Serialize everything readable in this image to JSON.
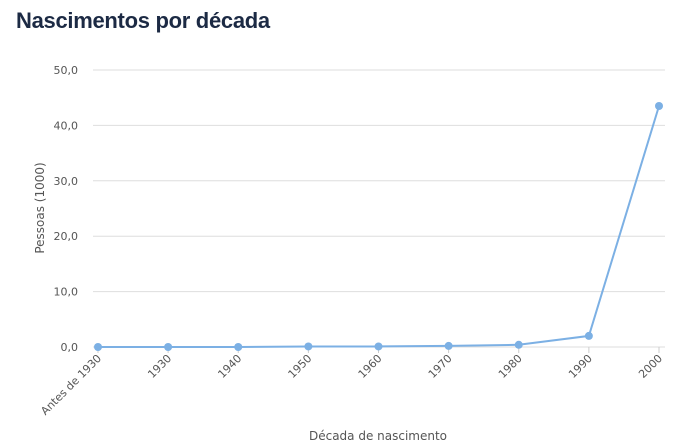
{
  "chart_data": {
    "type": "line",
    "title": "Nascimentos por década",
    "xlabel": "Década de nascimento",
    "ylabel": "Pessoas (1000)",
    "categories": [
      "Antes de 1930",
      "1930",
      "1940",
      "1950",
      "1960",
      "1970",
      "1980",
      "1990",
      "2000"
    ],
    "series": [
      {
        "name": "Pessoas (1000)",
        "values": [
          0.0,
          0.0,
          0.0,
          0.1,
          0.1,
          0.2,
          0.4,
          2.0,
          43.5
        ],
        "color": "#7cb0e4"
      }
    ],
    "ylim": [
      0,
      50
    ],
    "yticks": [
      "0,0",
      "10,0",
      "20,0",
      "30,0",
      "40,0",
      "50,0"
    ],
    "grid": true,
    "legend": "none"
  }
}
